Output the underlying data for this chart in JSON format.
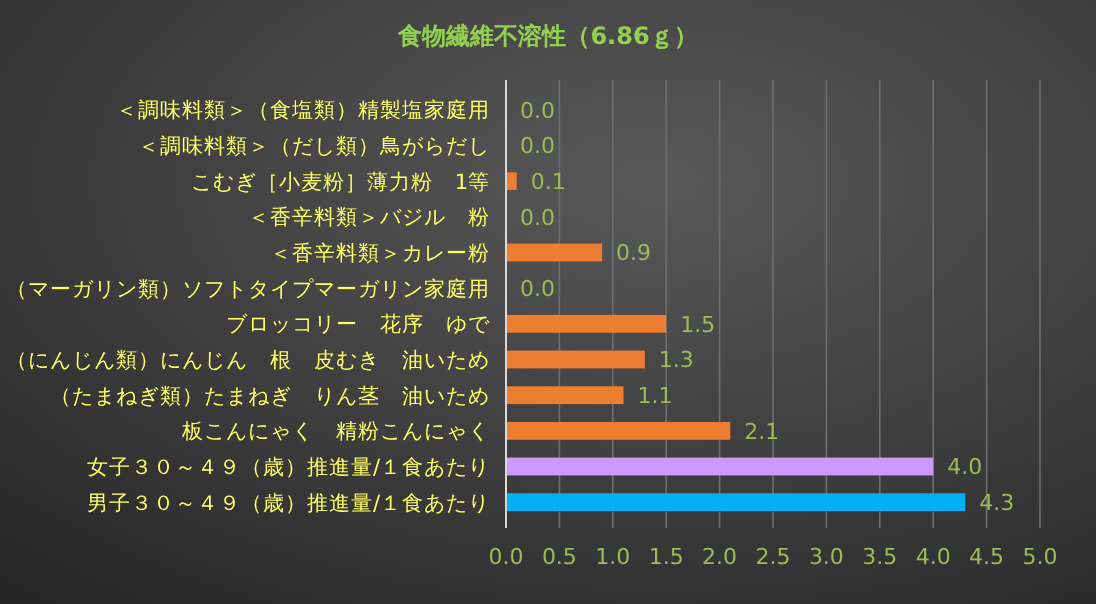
{
  "chart_data": {
    "type": "bar",
    "orientation": "horizontal",
    "title": "食物繊維不溶性（6.86ｇ）",
    "categories": [
      "＜調味料類＞（食塩類）精製塩家庭用",
      "＜調味料類＞（だし類）鳥がらだし",
      "こむぎ［小麦粉］薄力粉　1等",
      "＜香辛料類＞バジル　粉",
      "＜香辛料類＞カレー粉",
      "（マーガリン類）ソフトタイプマーガリン家庭用",
      "ブロッコリー　花序　ゆで",
      "（にんじん類）にんじん　根　皮むき　油いため",
      "（たまねぎ類）たまねぎ　りん茎　油いため",
      "板こんにゃく　精粉こんにゃく",
      "女子３０～４９（歳）推進量/１食あたり",
      "男子３０～４９（歳）推進量/１食あたり"
    ],
    "values": [
      0,
      0,
      0.1,
      0,
      0.9,
      0,
      1.5,
      1.3,
      1.1,
      2.1,
      4.0,
      4.3
    ],
    "value_labels": [
      "0.0",
      "0.0",
      "0.1",
      "0.0",
      "0.9",
      "0.0",
      "1.5",
      "1.3",
      "1.1",
      "2.1",
      "4.0",
      "4.3"
    ],
    "colors": [
      "#ed7d31",
      "#ed7d31",
      "#ed7d31",
      "#ed7d31",
      "#ed7d31",
      "#ed7d31",
      "#ed7d31",
      "#ed7d31",
      "#ed7d31",
      "#ed7d31",
      "#cc99ff",
      "#00b0f0"
    ],
    "xlim": [
      0,
      5
    ],
    "xticks": [
      {
        "value": 0,
        "label": "0.0"
      },
      {
        "value": 0.5,
        "label": "0.5"
      },
      {
        "value": 1,
        "label": "1.0"
      },
      {
        "value": 1.5,
        "label": "1.5"
      },
      {
        "value": 2,
        "label": "2.0"
      },
      {
        "value": 2.5,
        "label": "2.5"
      },
      {
        "value": 3,
        "label": "3.0"
      },
      {
        "value": 3.5,
        "label": "3.5"
      },
      {
        "value": 4,
        "label": "4.0"
      },
      {
        "value": 4.5,
        "label": "4.5"
      },
      {
        "value": 5,
        "label": "5.0"
      }
    ],
    "grid": "x"
  }
}
